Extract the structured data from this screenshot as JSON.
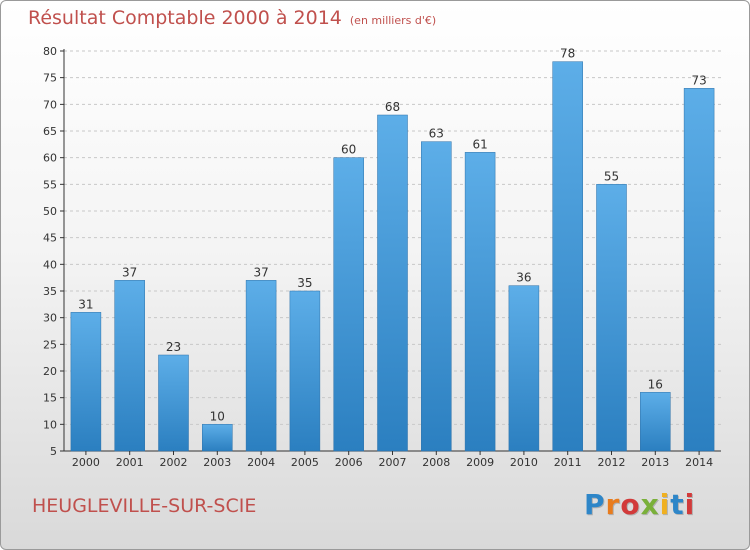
{
  "header": {
    "title": "Résultat Comptable 2000 à 2014",
    "unit": "(en milliers d'€)"
  },
  "footer": {
    "town": "HEUGLEVILLE-SUR-SCIE",
    "logo_text": "Proxiti"
  },
  "colors": {
    "title": "#c0504d",
    "bar_top": "#5daee8",
    "bar_bottom": "#2b7fc0",
    "axis": "#333333"
  },
  "chart_data": {
    "type": "bar",
    "title": "Résultat Comptable 2000 à 2014",
    "subtitle": "(en milliers d'€)",
    "categories": [
      "2000",
      "2001",
      "2002",
      "2003",
      "2004",
      "2005",
      "2006",
      "2007",
      "2008",
      "2009",
      "2010",
      "2011",
      "2012",
      "2013",
      "2014"
    ],
    "values": [
      31,
      37,
      23,
      10,
      37,
      35,
      60,
      68,
      63,
      61,
      36,
      78,
      55,
      16,
      73
    ],
    "ylim": [
      5,
      80
    ],
    "yticks": [
      5,
      10,
      15,
      20,
      25,
      30,
      35,
      40,
      45,
      50,
      55,
      60,
      65,
      70,
      75,
      80
    ],
    "grid": true,
    "data_labels": true
  }
}
